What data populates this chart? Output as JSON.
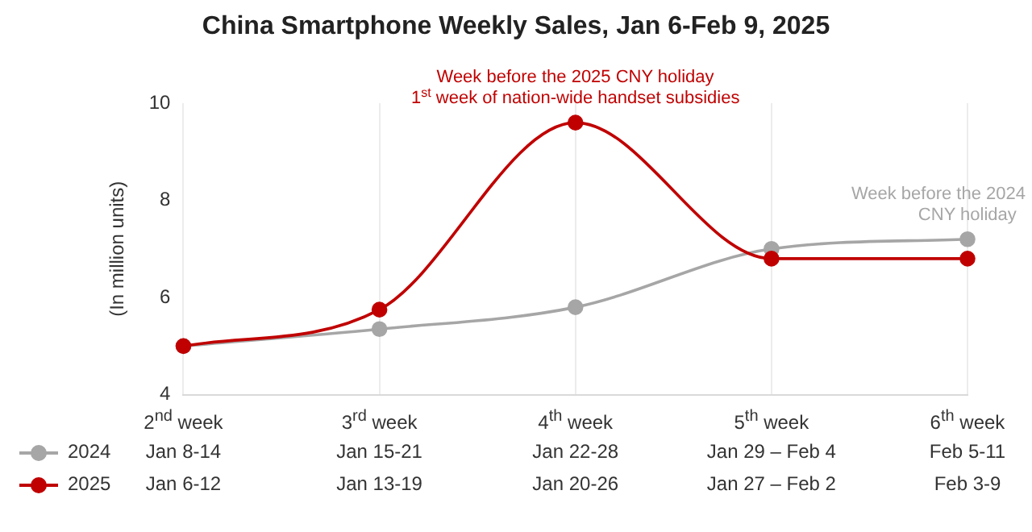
{
  "chart_data": {
    "type": "line",
    "title": "China Smartphone Weekly Sales, Jan 6-Feb 9, 2025",
    "ylabel": "(In million units)",
    "categories": [
      "2$^{nd}$ week",
      "3$^{rd}$ week",
      "4$^{th}$ week",
      "5$^{th}$ week",
      "6$^{th}$ week"
    ],
    "series": [
      {
        "name": "2024",
        "color": "#a6a6a6",
        "values": [
          5.0,
          5.35,
          5.8,
          7.0,
          7.2
        ]
      },
      {
        "name": "2025",
        "color": "#c00000",
        "values": [
          5.0,
          5.75,
          9.6,
          6.8,
          6.8
        ]
      }
    ],
    "ylim": [
      4,
      10
    ],
    "yticks": [
      4,
      6,
      8,
      10
    ],
    "grid": "x",
    "legend": "bottom",
    "marker": "circle",
    "line_style": "solid",
    "annotations": [
      {
        "text": "Week before the 2025 CNY holiday\n1$^{st}$ week of nation-wide handset subsidies",
        "x": "4$^{th}$ week",
        "y": 9.6
      },
      {
        "text": "Week before the 2024\nCNY holiday",
        "x": "6$^{th}$ week",
        "y": 7.2
      },
      "Jan 8-14",
      "Jan 15-21",
      "Jan 22-28",
      "Jan 29 – Feb 4",
      "Feb 5-11",
      "Jan 6-12",
      "Jan 13-19",
      "Jan 20-26",
      "Jan 27 – Feb 2",
      "Feb 3-9"
    ]
  }
}
